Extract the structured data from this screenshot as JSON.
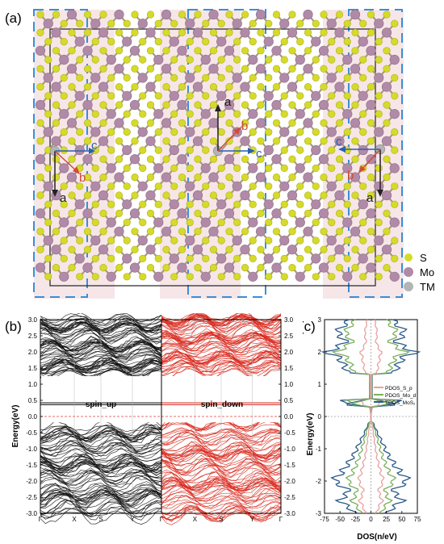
{
  "panel_a": {
    "label": "(a)",
    "legend": [
      {
        "name": "S",
        "color": "#d6da2a"
      },
      {
        "name": "Mo",
        "color": "#b18aa8"
      },
      {
        "name": "TM",
        "color": "#b4b4b4"
      }
    ],
    "axes_left": {
      "a": "a",
      "b": "b",
      "c": "c"
    },
    "axes_mid": {
      "a": "a",
      "b": "b",
      "c": "c"
    },
    "axes_right": {
      "a": "a",
      "b": "b",
      "c": "c"
    },
    "colors": {
      "band": "#f6e6e8",
      "dash": "#3a8fd8",
      "axis_c": "#2a5fb4",
      "axis_b": "#d24a3a",
      "bond": "#a79a7e"
    }
  },
  "panel_b": {
    "label": "(b)",
    "ylabel": "Energy(eV)",
    "yticks": [
      "3.0",
      "2.5",
      "2.0",
      "1.5",
      "1.0",
      "0.5",
      "0.0",
      "-0.5",
      "-1.0",
      "-1.5",
      "-2.0",
      "-2.5",
      "-3.0"
    ],
    "xticks_left": [
      "Γ",
      "X",
      "S",
      "Y",
      "Γ"
    ],
    "xticks_right": [
      "X",
      "S",
      "Y",
      "Γ"
    ],
    "spin_up_label": "spin_up",
    "spin_down_label": "spin_down",
    "colors": {
      "spin_up": "#111111",
      "spin_down": "#d8281c",
      "fermi": "#e04040"
    }
  },
  "panel_c": {
    "label": "(c)",
    "ylabel": "Energy(eV)",
    "xlabel": "DOS(n/eV)",
    "xticks": [
      "-75",
      "-50",
      "-25",
      "0",
      "25",
      "50",
      "75"
    ],
    "yticks": [
      "3",
      "2",
      "1",
      "0",
      "-1",
      "-2",
      "-3"
    ],
    "legend": [
      "PDOS_S_p",
      "PDOS_Mo_d",
      "TDOS_MoS₂"
    ],
    "colors": {
      "s_p": "#e8a0a0",
      "mo_d": "#7ab05a",
      "total": "#2c5a8a"
    }
  },
  "chart_data": [
    {
      "type": "line",
      "title": "",
      "xlabel": "",
      "ylabel": "Energy(eV)",
      "ylim": [
        -3.0,
        3.0
      ],
      "x": [
        "Γ",
        "X",
        "S",
        "Y",
        "Γ"
      ],
      "series": [
        {
          "name": "spin_up",
          "band_edges": {
            "conduction_min": 1.3,
            "valence_max": -0.2,
            "defect_levels": [
              0.35,
              0.4
            ]
          }
        },
        {
          "name": "spin_down",
          "band_edges": {
            "conduction_min": 1.3,
            "valence_max": -0.2,
            "defect_levels": [
              0.35,
              0.4
            ]
          }
        }
      ]
    },
    {
      "type": "line",
      "title": "",
      "xlabel": "DOS(n/eV)",
      "ylabel": "Energy(eV)",
      "xlim": [
        -75,
        75
      ],
      "ylim": [
        -3,
        3
      ],
      "series": [
        {
          "name": "PDOS_S_p",
          "energy": [
            -3,
            -2.6,
            -2.3,
            -2,
            -1.6,
            -1.2,
            -0.8,
            -0.4,
            0,
            0.4,
            1.4,
            1.8,
            2.0,
            2.3,
            2.6,
            3
          ],
          "dos": [
            8,
            18,
            12,
            20,
            14,
            9,
            6,
            3,
            0,
            15,
            10,
            14,
            16,
            8,
            10,
            6
          ]
        },
        {
          "name": "PDOS_Mo_d",
          "energy": [
            -3,
            -2.6,
            -2.3,
            -2,
            -1.6,
            -1.2,
            -0.8,
            -0.4,
            0,
            0.4,
            1.4,
            1.8,
            2.0,
            2.3,
            2.6,
            3
          ],
          "dos": [
            15,
            30,
            22,
            38,
            26,
            18,
            12,
            6,
            0,
            35,
            28,
            38,
            55,
            30,
            42,
            25
          ]
        },
        {
          "name": "TDOS_MoS₂",
          "energy": [
            -3,
            -2.6,
            -2.3,
            -2,
            -1.6,
            -1.2,
            -0.8,
            -0.4,
            0,
            0.4,
            1.4,
            1.8,
            2.0,
            2.3,
            2.6,
            3
          ],
          "dos": [
            25,
            50,
            35,
            60,
            42,
            28,
            18,
            8,
            0,
            45,
            38,
            50,
            70,
            40,
            55,
            35
          ]
        }
      ]
    }
  ]
}
